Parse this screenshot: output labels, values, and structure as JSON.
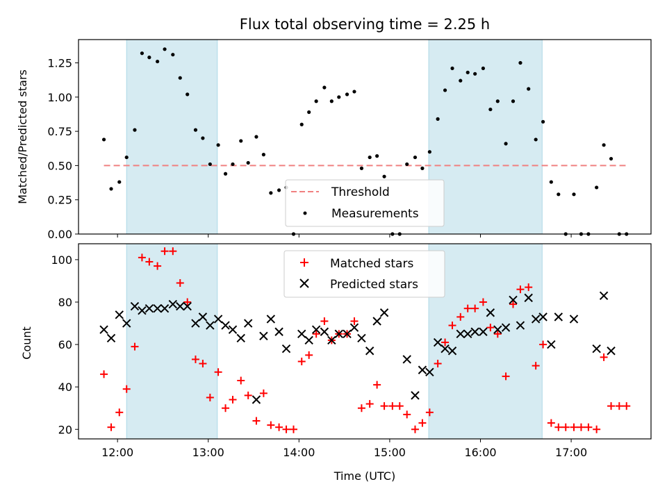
{
  "chart_data": [
    {
      "type": "scatter",
      "title": "Flux total observing time = 2.25 h",
      "xlabel": "",
      "ylabel": "Matched/Predicted stars",
      "ylim": [
        0,
        1.42
      ],
      "yticks": [
        0.0,
        0.25,
        0.5,
        0.75,
        1.0,
        1.25
      ],
      "ytick_labels": [
        "0.00",
        "0.25",
        "0.50",
        "0.75",
        "1.00",
        "1.25"
      ],
      "xlim_hours": [
        11.57,
        17.88
      ],
      "xticks_hours": [
        12,
        13,
        14,
        15,
        16,
        17
      ],
      "shaded_bands_hours": [
        [
          12.1,
          13.1
        ],
        [
          15.43,
          16.68
        ]
      ],
      "threshold": {
        "name": "Threshold",
        "value": 0.5,
        "x_range_hours": [
          11.85,
          17.6
        ],
        "color": "#f08080"
      },
      "series": [
        {
          "name": "Measurements",
          "color": "#000000",
          "marker": "dot",
          "x": [
            11.85,
            11.93,
            12.02,
            12.1,
            12.19,
            12.27,
            12.35,
            12.44,
            12.52,
            12.61,
            12.69,
            12.77,
            12.86,
            12.94,
            13.02,
            13.11,
            13.19,
            13.27,
            13.36,
            13.44,
            13.53,
            13.61,
            13.69,
            13.78,
            13.86,
            13.94,
            14.03,
            14.11,
            14.19,
            14.28,
            14.36,
            14.44,
            14.53,
            14.61,
            14.69,
            14.78,
            14.86,
            14.94,
            15.03,
            15.11,
            15.19,
            15.28,
            15.36,
            15.44,
            15.53,
            15.61,
            15.69,
            15.78,
            15.86,
            15.94,
            16.03,
            16.11,
            16.19,
            16.28,
            16.36,
            16.44,
            16.53,
            16.61,
            16.69,
            16.78,
            16.86,
            16.94,
            17.03,
            17.11,
            17.19,
            17.28,
            17.36,
            17.44,
            17.53,
            17.61
          ],
          "y": [
            0.69,
            0.33,
            0.38,
            0.56,
            0.76,
            1.32,
            1.29,
            1.26,
            1.35,
            1.31,
            1.14,
            1.02,
            0.76,
            0.7,
            0.51,
            0.65,
            0.44,
            0.51,
            0.68,
            0.52,
            0.71,
            0.58,
            0.3,
            0.32,
            0.34,
            0.0,
            0.8,
            0.89,
            0.97,
            1.07,
            0.97,
            1.0,
            1.02,
            1.04,
            0.48,
            0.56,
            0.57,
            0.42,
            0.0,
            0.0,
            0.51,
            0.56,
            0.48,
            0.6,
            0.84,
            1.05,
            1.21,
            1.12,
            1.18,
            1.17,
            1.21,
            0.91,
            0.97,
            0.66,
            0.97,
            1.25,
            1.06,
            0.69,
            0.82,
            0.38,
            0.29,
            0.0,
            0.29,
            0.0,
            0.0,
            0.34,
            0.65,
            0.55,
            0.0,
            0.0
          ]
        }
      ],
      "legend": {
        "position": "lower center",
        "entries": [
          "Threshold",
          "Measurements"
        ]
      }
    },
    {
      "type": "scatter",
      "title": "",
      "xlabel": "Time (UTC)",
      "ylabel": "Count",
      "ylim": [
        15.5,
        107.5
      ],
      "yticks": [
        20,
        40,
        60,
        80,
        100
      ],
      "ytick_labels": [
        "20",
        "40",
        "60",
        "80",
        "100"
      ],
      "xlim_hours": [
        11.57,
        17.88
      ],
      "xticks_hours": [
        12,
        13,
        14,
        15,
        16,
        17
      ],
      "xtick_labels": [
        "12:00",
        "13:00",
        "14:00",
        "15:00",
        "16:00",
        "17:00"
      ],
      "shaded_bands_hours": [
        [
          12.1,
          13.1
        ],
        [
          15.43,
          16.68
        ]
      ],
      "series": [
        {
          "name": "Matched stars",
          "color": "#ff0000",
          "marker": "plus",
          "x": [
            11.85,
            11.93,
            12.02,
            12.1,
            12.19,
            12.27,
            12.35,
            12.44,
            12.52,
            12.61,
            12.69,
            12.77,
            12.86,
            12.94,
            13.02,
            13.11,
            13.19,
            13.27,
            13.36,
            13.44,
            13.53,
            13.61,
            13.69,
            13.78,
            13.86,
            13.94,
            14.03,
            14.11,
            14.19,
            14.28,
            14.36,
            14.44,
            14.53,
            14.61,
            14.69,
            14.78,
            14.86,
            14.94,
            15.03,
            15.11,
            15.19,
            15.28,
            15.36,
            15.44,
            15.53,
            15.61,
            15.69,
            15.78,
            15.86,
            15.94,
            16.03,
            16.11,
            16.19,
            16.28,
            16.36,
            16.44,
            16.53,
            16.61,
            16.69,
            16.78,
            16.86,
            16.94,
            17.03,
            17.11,
            17.19,
            17.28,
            17.36,
            17.44,
            17.53,
            17.61
          ],
          "y": [
            46,
            21,
            28,
            39,
            59,
            101,
            99,
            97,
            104,
            104,
            89,
            80,
            53,
            51,
            35,
            47,
            30,
            34,
            43,
            36,
            24,
            37,
            22,
            21,
            20,
            20,
            52,
            55,
            65,
            71,
            62,
            65,
            65,
            71,
            30,
            32,
            41,
            31,
            31,
            31,
            27,
            20,
            23,
            28,
            51,
            61,
            69,
            73,
            77,
            77,
            80,
            68,
            65,
            45,
            79,
            86,
            87,
            50,
            60,
            23,
            21,
            21,
            21,
            21,
            21,
            20,
            54,
            31,
            31,
            31
          ]
        },
        {
          "name": "Predicted stars",
          "color": "#000000",
          "marker": "x",
          "x": [
            11.85,
            11.93,
            12.02,
            12.1,
            12.19,
            12.27,
            12.35,
            12.44,
            12.52,
            12.61,
            12.69,
            12.77,
            12.86,
            12.94,
            13.02,
            13.11,
            13.19,
            13.27,
            13.36,
            13.44,
            13.53,
            13.61,
            13.69,
            13.78,
            13.86,
            14.03,
            14.11,
            14.19,
            14.28,
            14.36,
            14.44,
            14.53,
            14.61,
            14.69,
            14.78,
            14.86,
            14.94,
            15.19,
            15.28,
            15.36,
            15.44,
            15.53,
            15.61,
            15.69,
            15.78,
            15.86,
            15.94,
            16.03,
            16.11,
            16.19,
            16.28,
            16.36,
            16.44,
            16.53,
            16.61,
            16.69,
            16.78,
            16.86,
            17.03,
            17.28,
            17.36,
            17.44
          ],
          "y": [
            67,
            63,
            74,
            70,
            78,
            76,
            77,
            77,
            77,
            79,
            78,
            78,
            70,
            73,
            69,
            72,
            69,
            67,
            63,
            70,
            34,
            64,
            72,
            66,
            58,
            65,
            62,
            67,
            66,
            62,
            65,
            65,
            68,
            63,
            57,
            71,
            75,
            53,
            36,
            48,
            47,
            61,
            58,
            57,
            65,
            65,
            66,
            66,
            75,
            67,
            68,
            81,
            69,
            82,
            72,
            73,
            60,
            73,
            72,
            58,
            83,
            57
          ]
        }
      ],
      "legend": {
        "position": "upper center",
        "entries": [
          "Matched stars",
          "Predicted stars"
        ]
      }
    }
  ]
}
